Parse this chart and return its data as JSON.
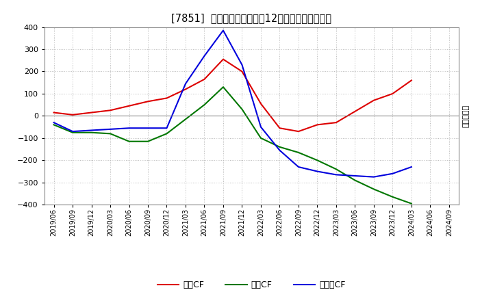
{
  "title": "[7851]  キャッシュフローの12か月移動合計の推移",
  "ylabel": "（百万円）",
  "ylim": [
    -400,
    400
  ],
  "yticks": [
    -400,
    -300,
    -200,
    -100,
    0,
    100,
    200,
    300,
    400
  ],
  "x_labels": [
    "2019/06",
    "2019/09",
    "2019/12",
    "2020/03",
    "2020/06",
    "2020/09",
    "2020/12",
    "2021/03",
    "2021/06",
    "2021/09",
    "2021/12",
    "2022/03",
    "2022/06",
    "2022/09",
    "2022/12",
    "2023/03",
    "2023/06",
    "2023/09",
    "2023/12",
    "2024/03",
    "2024/06",
    "2024/09"
  ],
  "operating_cf": [
    15,
    5,
    15,
    25,
    45,
    65,
    80,
    120,
    165,
    255,
    200,
    55,
    -55,
    -70,
    -40,
    -30,
    20,
    70,
    100,
    160,
    null,
    null
  ],
  "investing_cf": [
    -40,
    -75,
    -75,
    -80,
    -115,
    -115,
    -80,
    -15,
    50,
    130,
    30,
    -100,
    -140,
    -165,
    -200,
    -240,
    -290,
    -330,
    -365,
    -395,
    null,
    null
  ],
  "free_cf": [
    -30,
    -70,
    -65,
    -60,
    -55,
    -55,
    -55,
    145,
    270,
    385,
    230,
    -50,
    -155,
    -230,
    -250,
    -265,
    -270,
    -275,
    -260,
    -230,
    null,
    null
  ],
  "line_colors": {
    "operating": "#dd0000",
    "investing": "#007700",
    "free": "#0000dd"
  },
  "legend_labels": {
    "operating": "営業CF",
    "investing": "投資CF",
    "free": "フリーCF"
  },
  "bg_color": "#ffffff",
  "plot_bg_color": "#ffffff",
  "grid_color": "#bbbbbb",
  "zero_line_color": "#888888"
}
